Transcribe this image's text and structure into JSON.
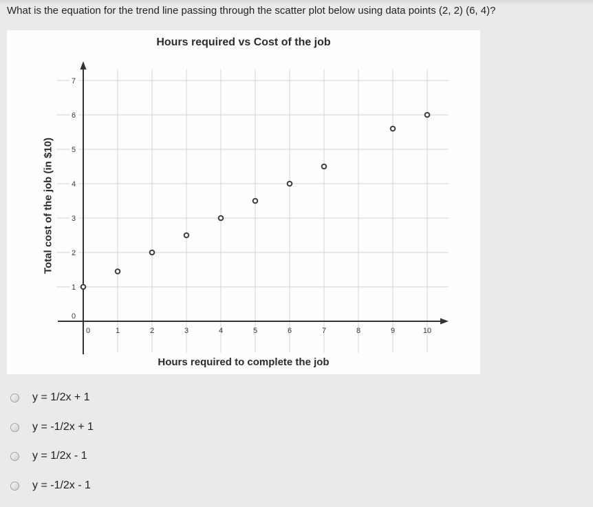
{
  "question": {
    "text": "What is the equation for the trend line passing through the scatter plot below using data points (2, 2) (6, 4)?"
  },
  "chart_data": {
    "type": "scatter",
    "title": "Hours required vs Cost of the job",
    "xlabel": "Hours required to complete the job",
    "ylabel": "Total cost of the job (in $10)",
    "xlim": [
      0,
      10
    ],
    "ylim": [
      0,
      7
    ],
    "xticks": [
      0,
      1,
      2,
      3,
      4,
      5,
      6,
      7,
      8,
      9,
      10
    ],
    "yticks": [
      0,
      1,
      2,
      3,
      4,
      5,
      6,
      7
    ],
    "grid": true,
    "marker": "open-circle",
    "points": [
      [
        0,
        1
      ],
      [
        1,
        1.45
      ],
      [
        2,
        2
      ],
      [
        3,
        2.5
      ],
      [
        4,
        3
      ],
      [
        5,
        3.5
      ],
      [
        6,
        4
      ],
      [
        7,
        4.5
      ],
      [
        9,
        5.6
      ],
      [
        10,
        6
      ]
    ]
  },
  "options": [
    {
      "label": "y = 1/2x + 1",
      "selected": false
    },
    {
      "label": "y = -1/2x + 1",
      "selected": false
    },
    {
      "label": "y = 1/2x - 1",
      "selected": false
    },
    {
      "label": "y = -1/2x - 1",
      "selected": false
    }
  ],
  "colors": {
    "page_bg": "#eaeaea",
    "panel_bg": "#fdfdfd",
    "grid": "#d2d2d2",
    "axis": "#333333",
    "point_stroke": "#3c3c3c",
    "tick_text": "#3a3a3a",
    "text": "#232323"
  }
}
